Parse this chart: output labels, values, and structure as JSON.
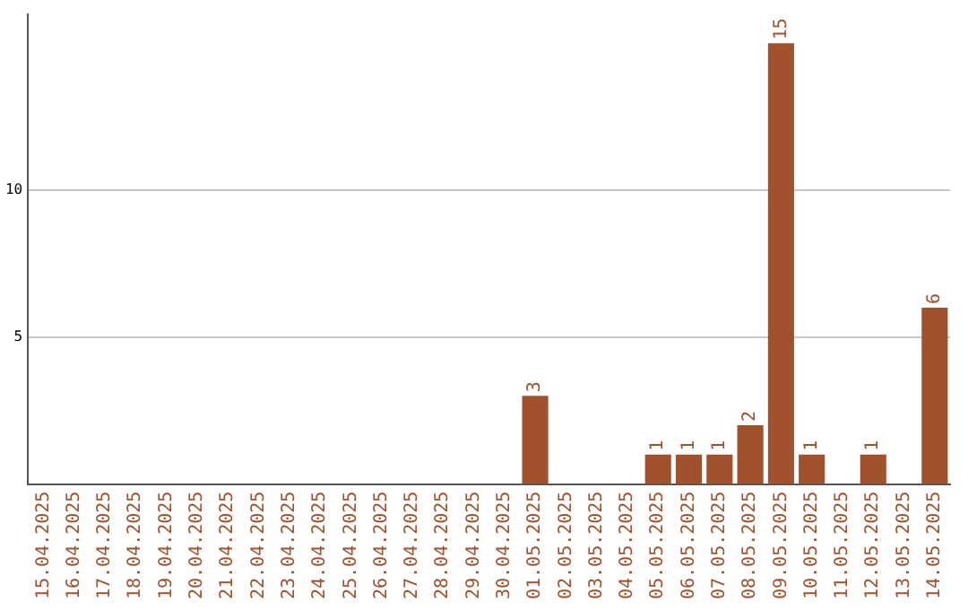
{
  "chart_data": {
    "type": "bar",
    "categories": [
      "15.04.2025",
      "16.04.2025",
      "17.04.2025",
      "18.04.2025",
      "19.04.2025",
      "20.04.2025",
      "21.04.2025",
      "22.04.2025",
      "23.04.2025",
      "24.04.2025",
      "25.04.2025",
      "26.04.2025",
      "27.04.2025",
      "28.04.2025",
      "29.04.2025",
      "30.04.2025",
      "01.05.2025",
      "02.05.2025",
      "03.05.2025",
      "04.05.2025",
      "05.05.2025",
      "06.05.2025",
      "07.05.2025",
      "08.05.2025",
      "09.05.2025",
      "10.05.2025",
      "11.05.2025",
      "12.05.2025",
      "13.05.2025",
      "14.05.2025"
    ],
    "values": [
      0,
      0,
      0,
      0,
      0,
      0,
      0,
      0,
      0,
      0,
      0,
      0,
      0,
      0,
      0,
      0,
      3,
      0,
      0,
      0,
      1,
      1,
      1,
      2,
      15,
      1,
      0,
      1,
      0,
      6
    ],
    "value_labels": [
      null,
      null,
      null,
      null,
      null,
      null,
      null,
      null,
      null,
      null,
      null,
      null,
      null,
      null,
      null,
      null,
      "3",
      null,
      null,
      null,
      "1",
      "1",
      "1",
      "2",
      "15",
      "1",
      null,
      "1",
      null,
      "6"
    ],
    "color": "#a0522d",
    "ylim": [
      0,
      16
    ],
    "yticks": [
      5,
      10
    ],
    "grid": "y"
  }
}
